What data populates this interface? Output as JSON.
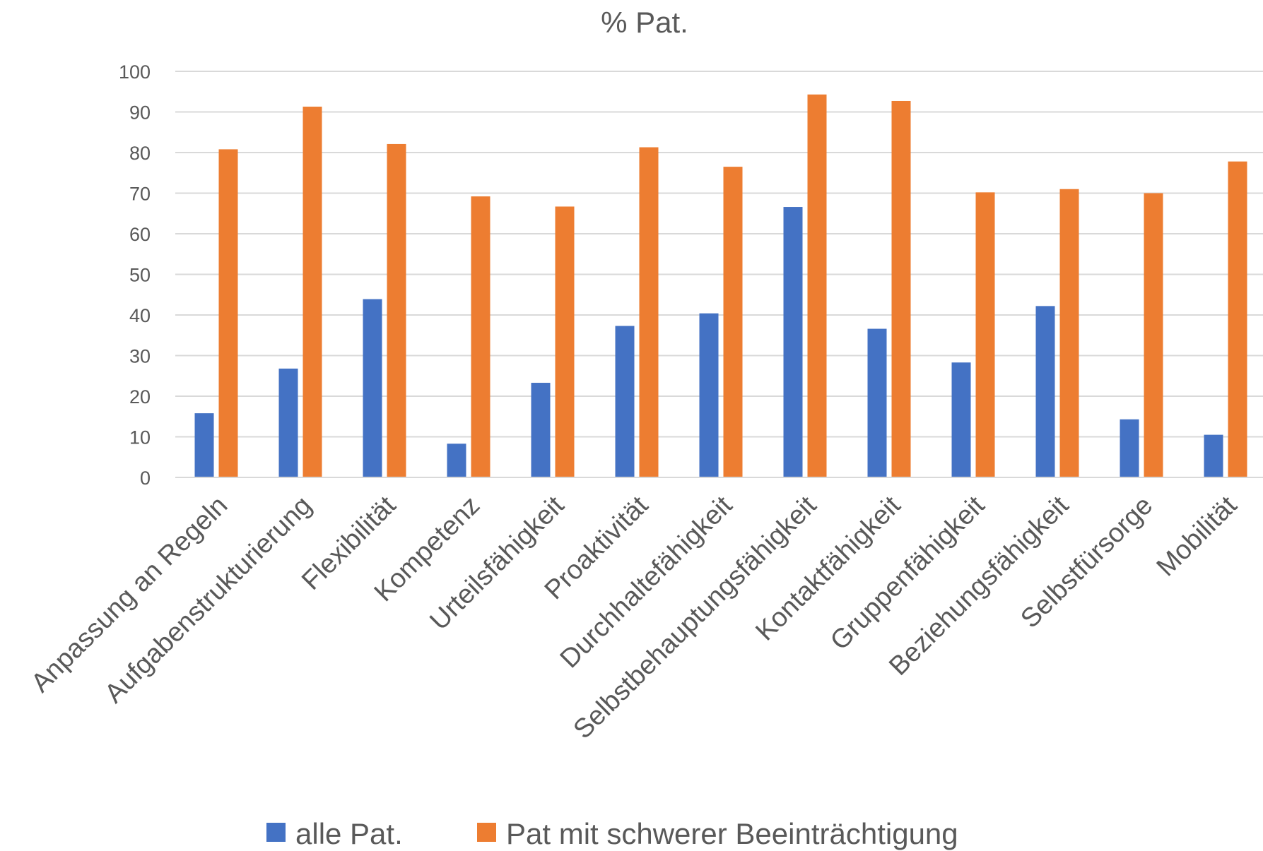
{
  "chart_data": {
    "type": "bar",
    "title": "% Pat.",
    "xlabel": "",
    "ylabel": "",
    "ylim": [
      0,
      100
    ],
    "yticks": [
      0,
      10,
      20,
      30,
      40,
      50,
      60,
      70,
      80,
      90,
      100
    ],
    "grid": true,
    "legend_position": "bottom",
    "categories": [
      "Anpassung an Regeln",
      "Aufgabenstrukturierung",
      "Flexibilität",
      "Kompetenz",
      "Urteilsfähigkeit",
      "Proaktivität",
      "Durchhaltefähigkeit",
      "Selbstbehauptungsfähigkeit",
      "Kontaktfähigkeit",
      "Gruppenfähigkeit",
      "Beziehungsfähigkeit",
      "Selbstfürsorge",
      "Mobilität"
    ],
    "series": [
      {
        "name": "alle Pat.",
        "color": "#4472c4",
        "values": [
          15.8,
          26.8,
          43.9,
          8.3,
          23.3,
          37.3,
          40.4,
          66.6,
          36.6,
          28.3,
          42.2,
          14.3,
          10.5
        ]
      },
      {
        "name": "Pat mit schwerer Beeinträchtigung",
        "color": "#ed7d31",
        "values": [
          80.8,
          91.3,
          82.1,
          69.2,
          66.7,
          81.3,
          76.5,
          94.3,
          92.7,
          70.2,
          71.0,
          70.0,
          77.8
        ]
      }
    ]
  }
}
